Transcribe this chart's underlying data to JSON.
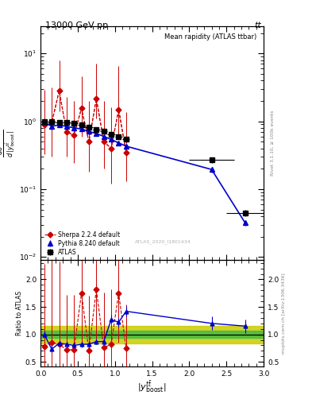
{
  "title_top": "13000 GeV pp",
  "title_right": "tt",
  "plot_title": "Mean rapidity (ATLAS ttbar)",
  "watermark": "ATLAS_2020_I1801434",
  "right_label_top": "Rivet 3.1.10, ≥ 100k events",
  "right_label_bot": "mcplots.cern.ch [arXiv:1306.3436]",
  "atlas_x": [
    0.05,
    0.15,
    0.25,
    0.35,
    0.45,
    0.55,
    0.65,
    0.75,
    0.85,
    0.95,
    1.05,
    1.15,
    2.3,
    2.75
  ],
  "atlas_y": [
    1.0,
    1.0,
    0.96,
    0.96,
    0.93,
    0.88,
    0.83,
    0.76,
    0.71,
    0.65,
    0.6,
    0.55,
    0.27,
    0.045
  ],
  "atlas_yerr": [
    0.025,
    0.025,
    0.025,
    0.03,
    0.03,
    0.03,
    0.03,
    0.03,
    0.04,
    0.04,
    0.04,
    0.04,
    0.025,
    0.005
  ],
  "atlas_xerr": [
    0.05,
    0.05,
    0.05,
    0.05,
    0.05,
    0.05,
    0.05,
    0.05,
    0.05,
    0.05,
    0.05,
    0.05,
    0.3,
    0.25
  ],
  "pythia_x": [
    0.05,
    0.15,
    0.25,
    0.35,
    0.45,
    0.55,
    0.65,
    0.75,
    0.85,
    0.95,
    1.05,
    1.15,
    2.3,
    2.75
  ],
  "pythia_y": [
    0.95,
    0.85,
    0.88,
    0.84,
    0.8,
    0.77,
    0.71,
    0.66,
    0.6,
    0.54,
    0.48,
    0.43,
    0.195,
    0.032
  ],
  "pythia_yerr": [
    0.03,
    0.03,
    0.03,
    0.03,
    0.03,
    0.03,
    0.03,
    0.03,
    0.03,
    0.03,
    0.03,
    0.03,
    0.02,
    0.003
  ],
  "sherpa_x": [
    0.05,
    0.15,
    0.25,
    0.35,
    0.45,
    0.55,
    0.65,
    0.75,
    0.85,
    0.95,
    1.05,
    1.15
  ],
  "sherpa_y": [
    0.88,
    0.95,
    2.8,
    0.7,
    0.62,
    1.55,
    0.5,
    2.15,
    0.5,
    0.4,
    1.5,
    0.35
  ],
  "sherpa_yerr_lo": [
    0.55,
    0.65,
    1.4,
    0.4,
    0.38,
    0.95,
    0.32,
    1.05,
    0.3,
    0.28,
    0.9,
    0.22
  ],
  "sherpa_yerr_hi": [
    2.0,
    2.2,
    5.0,
    1.6,
    1.4,
    3.0,
    1.5,
    5.0,
    1.5,
    1.2,
    5.0,
    1.0
  ],
  "ratio_pythia_x": [
    0.05,
    0.15,
    0.25,
    0.35,
    0.45,
    0.55,
    0.65,
    0.75,
    0.85,
    0.95,
    1.05,
    1.15,
    2.3,
    2.75
  ],
  "ratio_pythia_y": [
    1.0,
    0.73,
    0.84,
    0.82,
    0.8,
    0.82,
    0.82,
    0.87,
    0.87,
    1.27,
    1.22,
    1.42,
    1.2,
    1.15
  ],
  "ratio_pythia_err": [
    0.05,
    0.06,
    0.05,
    0.05,
    0.05,
    0.05,
    0.05,
    0.05,
    0.05,
    0.08,
    0.08,
    0.1,
    0.12,
    0.12
  ],
  "ratio_sherpa_x": [
    0.05,
    0.15,
    0.25,
    0.35,
    0.45,
    0.55,
    0.65,
    0.75,
    0.85,
    0.95,
    1.05,
    1.15
  ],
  "ratio_sherpa_y": [
    0.78,
    0.85,
    0.82,
    0.72,
    0.72,
    1.75,
    0.7,
    1.82,
    0.76,
    0.82,
    1.75,
    0.75
  ],
  "ratio_sherpa_err_lo": [
    0.55,
    0.65,
    0.5,
    0.4,
    0.4,
    0.9,
    0.4,
    0.9,
    0.4,
    0.4,
    0.9,
    0.35
  ],
  "ratio_sherpa_err_hi": [
    1.5,
    1.5,
    1.5,
    1.0,
    1.0,
    2.0,
    1.0,
    2.0,
    1.0,
    1.0,
    2.0,
    0.8
  ],
  "green_band": 0.06,
  "yellow_band": 0.16,
  "ylim_main": [
    0.009,
    25.0
  ],
  "ylim_ratio": [
    0.42,
    2.35
  ],
  "xlim": [
    0,
    3
  ],
  "atlas_color": "#000000",
  "pythia_color": "#0000cc",
  "sherpa_color": "#cc0000",
  "green_color": "#44bb44",
  "yellow_color": "#cccc00"
}
